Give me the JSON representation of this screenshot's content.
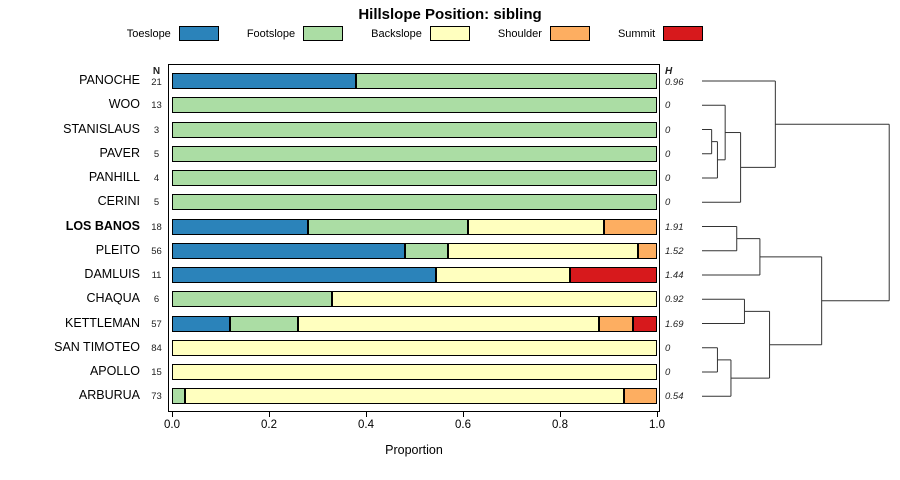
{
  "chart_data": {
    "type": "bar",
    "orientation": "horizontal",
    "stacked": true,
    "title": "Hillslope Position: sibling",
    "xlabel": "Proportion",
    "xlim": [
      0,
      1
    ],
    "x_ticks": [
      "0.0",
      "0.2",
      "0.4",
      "0.6",
      "0.8",
      "1.0"
    ],
    "grid": false,
    "legend_position": "top",
    "categories": [
      "Toeslope",
      "Footslope",
      "Backslope",
      "Shoulder",
      "Summit"
    ],
    "colors": {
      "Toeslope": "#2B83BA",
      "Footslope": "#ABDDA4",
      "Backslope": "#FFFFBF",
      "Shoulder": "#FDAE61",
      "Summit": "#D7191C"
    },
    "column_headers": {
      "n": "N",
      "h": "H"
    },
    "rows": [
      {
        "name": "PANOCHE",
        "n": 21,
        "h": "0.96",
        "bold": false,
        "segments": [
          {
            "category": "Toeslope",
            "value": 0.38
          },
          {
            "category": "Footslope",
            "value": 0.62
          }
        ]
      },
      {
        "name": "WOO",
        "n": 13,
        "h": "0",
        "bold": false,
        "segments": [
          {
            "category": "Footslope",
            "value": 1.0
          }
        ]
      },
      {
        "name": "STANISLAUS",
        "n": 3,
        "h": "0",
        "bold": false,
        "segments": [
          {
            "category": "Footslope",
            "value": 1.0
          }
        ]
      },
      {
        "name": "PAVER",
        "n": 5,
        "h": "0",
        "bold": false,
        "segments": [
          {
            "category": "Footslope",
            "value": 1.0
          }
        ]
      },
      {
        "name": "PANHILL",
        "n": 4,
        "h": "0",
        "bold": false,
        "segments": [
          {
            "category": "Footslope",
            "value": 1.0
          }
        ]
      },
      {
        "name": "CERINI",
        "n": 5,
        "h": "0",
        "bold": false,
        "segments": [
          {
            "category": "Footslope",
            "value": 1.0
          }
        ]
      },
      {
        "name": "LOS BANOS",
        "n": 18,
        "h": "1.91",
        "bold": true,
        "segments": [
          {
            "category": "Toeslope",
            "value": 0.28
          },
          {
            "category": "Footslope",
            "value": 0.33
          },
          {
            "category": "Backslope",
            "value": 0.28
          },
          {
            "category": "Shoulder",
            "value": 0.11
          }
        ]
      },
      {
        "name": "PLEITO",
        "n": 56,
        "h": "1.52",
        "bold": false,
        "segments": [
          {
            "category": "Toeslope",
            "value": 0.48
          },
          {
            "category": "Footslope",
            "value": 0.09
          },
          {
            "category": "Backslope",
            "value": 0.39
          },
          {
            "category": "Shoulder",
            "value": 0.04
          }
        ]
      },
      {
        "name": "DAMLUIS",
        "n": 11,
        "h": "1.44",
        "bold": false,
        "segments": [
          {
            "category": "Toeslope",
            "value": 0.545
          },
          {
            "category": "Backslope",
            "value": 0.275
          },
          {
            "category": "Summit",
            "value": 0.18
          }
        ]
      },
      {
        "name": "CHAQUA",
        "n": 6,
        "h": "0.92",
        "bold": false,
        "segments": [
          {
            "category": "Footslope",
            "value": 0.33
          },
          {
            "category": "Backslope",
            "value": 0.67
          }
        ]
      },
      {
        "name": "KETTLEMAN",
        "n": 57,
        "h": "1.69",
        "bold": false,
        "segments": [
          {
            "category": "Toeslope",
            "value": 0.12
          },
          {
            "category": "Footslope",
            "value": 0.14
          },
          {
            "category": "Backslope",
            "value": 0.62
          },
          {
            "category": "Shoulder",
            "value": 0.07
          },
          {
            "category": "Summit",
            "value": 0.05
          }
        ]
      },
      {
        "name": "SAN TIMOTEO",
        "n": 84,
        "h": "0",
        "bold": false,
        "segments": [
          {
            "category": "Backslope",
            "value": 1.0
          }
        ]
      },
      {
        "name": "APOLLO",
        "n": 15,
        "h": "0",
        "bold": false,
        "segments": [
          {
            "category": "Backslope",
            "value": 1.0
          }
        ]
      },
      {
        "name": "ARBURUA",
        "n": 73,
        "h": "0.54",
        "bold": false,
        "segments": [
          {
            "category": "Footslope",
            "value": 0.027
          },
          {
            "category": "Backslope",
            "value": 0.905
          },
          {
            "category": "Shoulder",
            "value": 0.068
          }
        ]
      }
    ],
    "dendrogram": {
      "leaf_order": [
        "PANOCHE",
        "WOO",
        "STANISLAUS",
        "PAVER",
        "PANHILL",
        "CERINI",
        "LOS BANOS",
        "PLEITO",
        "DAMLUIS",
        "CHAQUA",
        "KETTLEMAN",
        "SAN TIMOTEO",
        "APOLLO",
        "ARBURUA"
      ],
      "merges": [
        {
          "id": "m1",
          "a": "STANISLAUS",
          "b": "PAVER",
          "h": 0.05
        },
        {
          "id": "m2",
          "a": "m1",
          "b": "PANHILL",
          "h": 0.08
        },
        {
          "id": "m3",
          "a": "WOO",
          "b": "m2",
          "h": 0.12
        },
        {
          "id": "m4",
          "a": "m3",
          "b": "CERINI",
          "h": 0.2
        },
        {
          "id": "m5",
          "a": "PANOCHE",
          "b": "m4",
          "h": 0.38
        },
        {
          "id": "m6",
          "a": "LOS BANOS",
          "b": "PLEITO",
          "h": 0.18
        },
        {
          "id": "m7",
          "a": "m6",
          "b": "DAMLUIS",
          "h": 0.3
        },
        {
          "id": "m8",
          "a": "CHAQUA",
          "b": "KETTLEMAN",
          "h": 0.22
        },
        {
          "id": "m9",
          "a": "SAN TIMOTEO",
          "b": "APOLLO",
          "h": 0.08
        },
        {
          "id": "m10",
          "a": "m9",
          "b": "ARBURUA",
          "h": 0.15
        },
        {
          "id": "m11",
          "a": "m8",
          "b": "m10",
          "h": 0.35
        },
        {
          "id": "m12",
          "a": "m7",
          "b": "m11",
          "h": 0.62
        },
        {
          "id": "root",
          "a": "m5",
          "b": "m12",
          "h": 0.97
        }
      ]
    }
  }
}
